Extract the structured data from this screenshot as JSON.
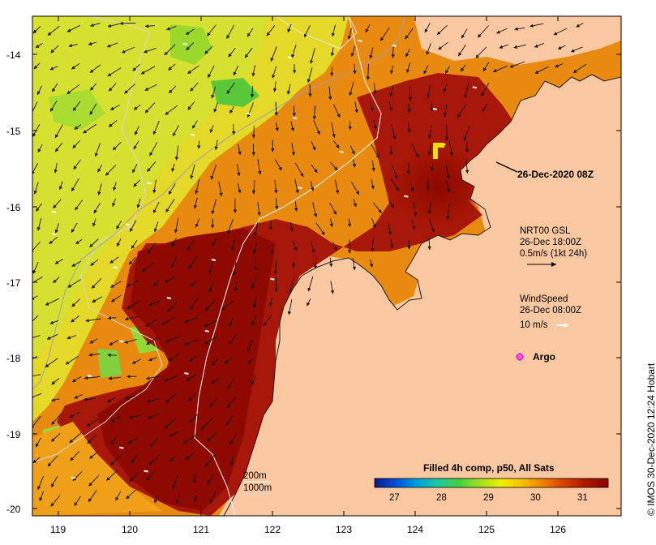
{
  "map": {
    "lon_ticks": [
      "119",
      "120",
      "121",
      "122",
      "123",
      "124",
      "125",
      "126"
    ],
    "lat_ticks": [
      "-14",
      "-15",
      "-16",
      "-17",
      "-18",
      "-19",
      "-20"
    ]
  },
  "annotations": {
    "pass_time": "26-Dec-2020 08Z",
    "currents_title": "NRT00 GSL",
    "currents_time": "26-Dec 18:00Z",
    "currents_scale": "0.5m/s (1kt 24h)",
    "wind_title": "WindSpeed",
    "wind_time": "26-Dec 08:00Z",
    "wind_scale": "10 m/s",
    "argo_label": "Argo",
    "contour_200": "200m",
    "contour_1000": "1000m"
  },
  "colorbar": {
    "title": "Filled 4h comp, p50, All Sats",
    "ticks": [
      "27",
      "28",
      "29",
      "30",
      "31"
    ],
    "colors": [
      "#0a1a8c",
      "#0050d8",
      "#00a0e0",
      "#20c8a0",
      "#40d040",
      "#a0e020",
      "#f0f000",
      "#f8c000",
      "#f08000",
      "#d84000",
      "#b01800",
      "#8c0000"
    ]
  },
  "credit": "© IMOS 30-Dec-2020 12:24 Hobart",
  "colors": {
    "land": "#fac8a0",
    "sst_warm": "#9a1200",
    "sst_mid": "#e07000",
    "sst_cool": "#e8e020",
    "argo": "#e020e0"
  }
}
